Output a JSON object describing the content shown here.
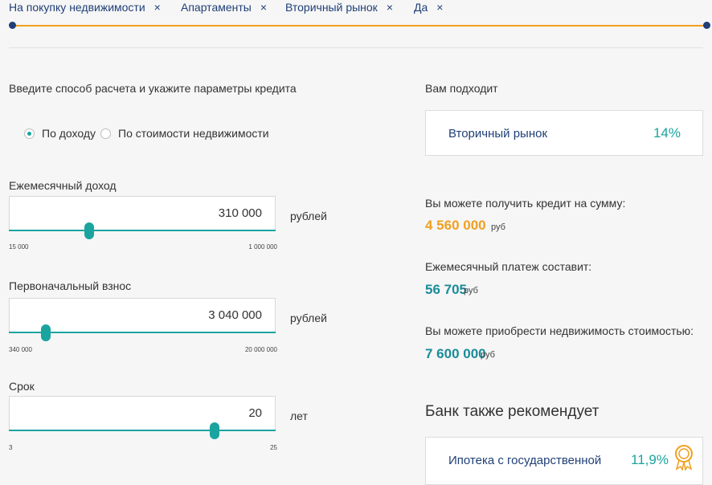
{
  "chips": [
    {
      "label": "На покупку недвижимости"
    },
    {
      "label": "Апартаменты"
    },
    {
      "label": "Вторичный рынок"
    },
    {
      "label": "Да"
    }
  ],
  "chip_close_symbol": "×",
  "form": {
    "heading": "Введите способ расчета и укажите параметры кредита",
    "radios": [
      {
        "label": "По доходу",
        "checked": true
      },
      {
        "label": "По стоимости недвижимости",
        "checked": false
      }
    ],
    "fields": [
      {
        "label": "Ежемесячный доход",
        "value": "310 000",
        "unit": "рублей",
        "min": "15 000",
        "max": "1 000 000",
        "slider_fraction": 0.3
      },
      {
        "label": "Первоначальный взнос",
        "value": "3 040 000",
        "unit": "рублей",
        "min": "340 000",
        "max": "20 000 000",
        "slider_fraction": 0.14
      },
      {
        "label": "Срок",
        "value": "20",
        "unit": "лет",
        "min": "3",
        "max": "25",
        "slider_fraction": 0.77
      }
    ]
  },
  "results": {
    "heading": "Вам подходит",
    "program": {
      "name": "Вторичный рынок",
      "rate": "14%"
    },
    "credit": {
      "label": "Вы можете получить кредит на сумму:",
      "value": "4 560 000",
      "currency": "руб"
    },
    "payment": {
      "label": "Ежемесячный платеж составит:",
      "value": "56 705",
      "currency": "руб"
    },
    "property": {
      "label": "Вы можете приобрести недвижимость стоимостью:",
      "value": "7 600 000",
      "currency": "руб"
    },
    "recommend_heading": "Банк также рекомендует",
    "recommendation": {
      "name": "Ипотека с государственной",
      "rate": "11,9%",
      "icon": "medal-icon"
    }
  },
  "colors": {
    "accent": "#1aa4a0",
    "orange": "#f0a020",
    "navy": "#1f3f77"
  }
}
